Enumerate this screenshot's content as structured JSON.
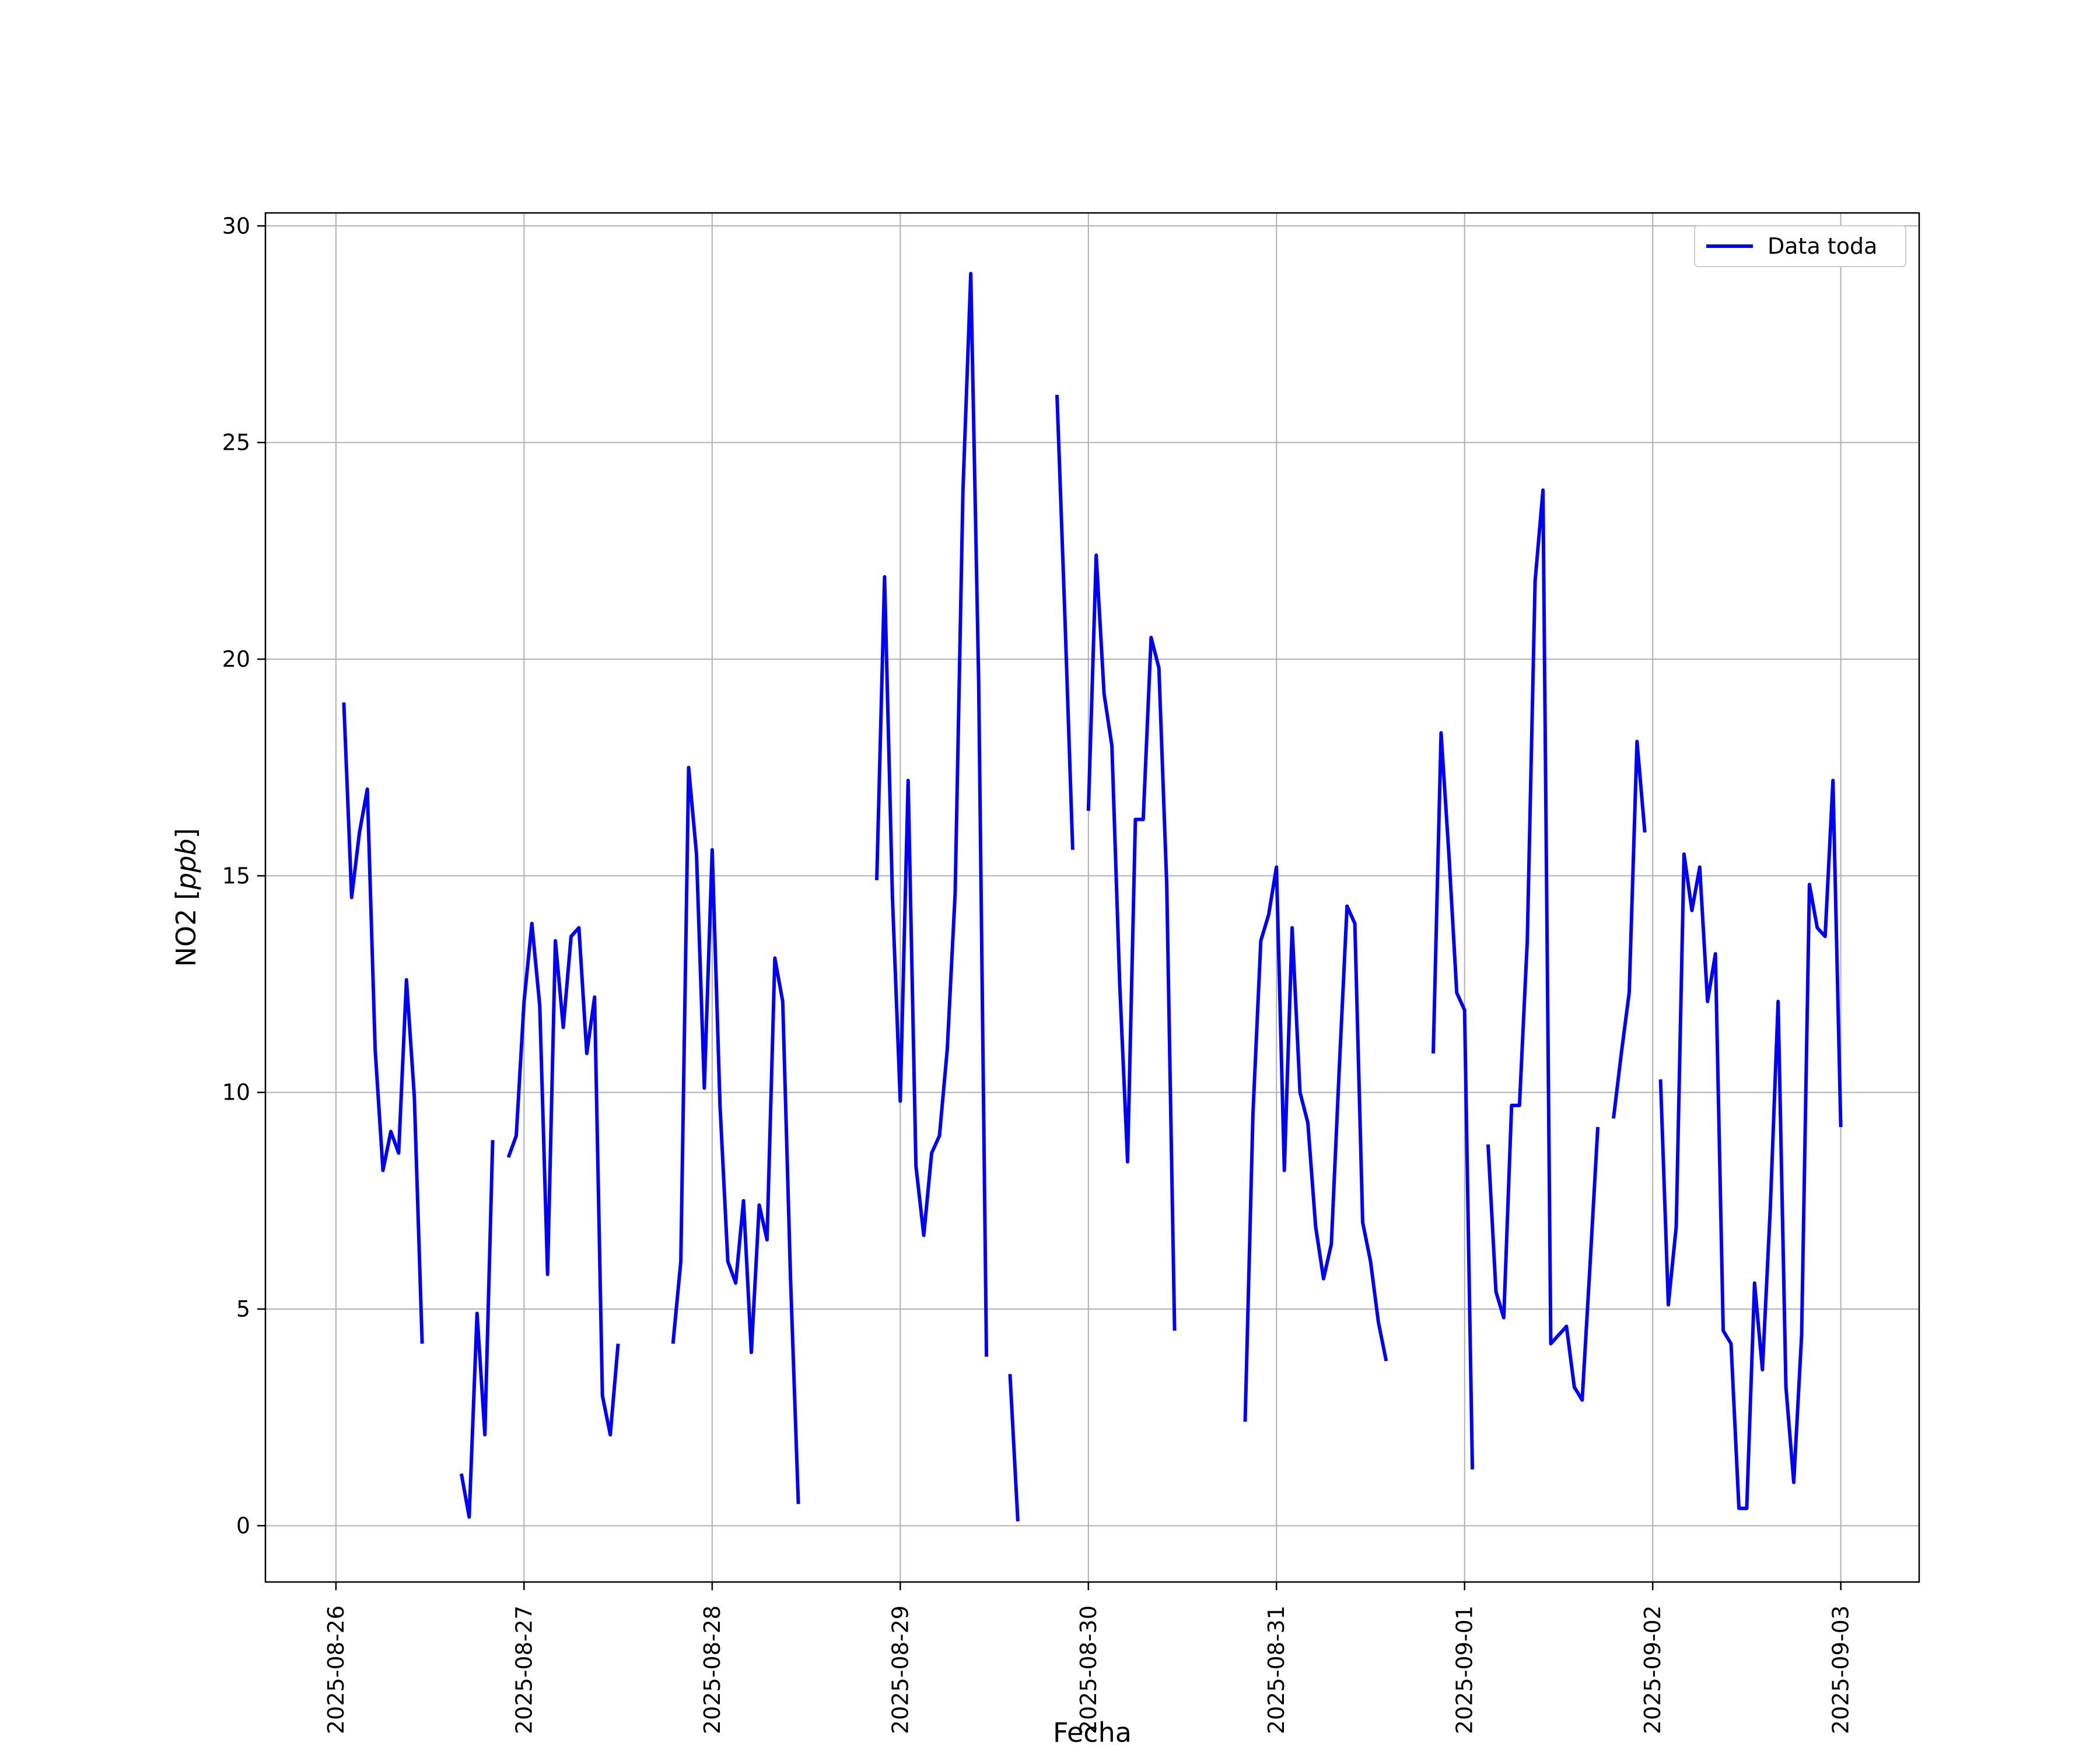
{
  "chart_data": {
    "type": "line",
    "xlabel": "Fecha",
    "ylabel_main": "NO2 [",
    "ylabel_unit": "ppb",
    "ylabel_end": "]",
    "ylim": [
      -1.3,
      30.3
    ],
    "xlim": [
      "2025-08-25T15:00",
      "2025-09-03T10:00"
    ],
    "grid": true,
    "legend_position": "top-right",
    "series_color": "#0000ff",
    "x_ticks": [
      {
        "value": "2025-08-26T00:00",
        "label": "2025-08-26"
      },
      {
        "value": "2025-08-27T00:00",
        "label": "2025-08-27"
      },
      {
        "value": "2025-08-28T00:00",
        "label": "2025-08-28"
      },
      {
        "value": "2025-08-29T00:00",
        "label": "2025-08-29"
      },
      {
        "value": "2025-08-30T00:00",
        "label": "2025-08-30"
      },
      {
        "value": "2025-08-31T00:00",
        "label": "2025-08-31"
      },
      {
        "value": "2025-09-01T00:00",
        "label": "2025-09-01"
      },
      {
        "value": "2025-09-02T00:00",
        "label": "2025-09-02"
      },
      {
        "value": "2025-09-03T00:00",
        "label": "2025-09-03"
      }
    ],
    "y_ticks": [
      {
        "value": 0,
        "label": "0"
      },
      {
        "value": 5,
        "label": "5"
      },
      {
        "value": 10,
        "label": "10"
      },
      {
        "value": 15,
        "label": "15"
      },
      {
        "value": 20,
        "label": "20"
      },
      {
        "value": 25,
        "label": "25"
      },
      {
        "value": 30,
        "label": "30"
      }
    ],
    "series": [
      {
        "name": "Data toda",
        "segments": [
          [
            [
              "2025-08-26T01:00",
              19.0
            ],
            [
              "2025-08-26T02:00",
              14.5
            ],
            [
              "2025-08-26T03:00",
              16.0
            ],
            [
              "2025-08-26T04:00",
              17.0
            ],
            [
              "2025-08-26T05:00",
              11.0
            ],
            [
              "2025-08-26T06:00",
              8.2
            ],
            [
              "2025-08-26T07:00",
              9.1
            ],
            [
              "2025-08-26T08:00",
              8.6
            ],
            [
              "2025-08-26T09:00",
              12.6
            ],
            [
              "2025-08-26T10:00",
              9.9
            ],
            [
              "2025-08-26T11:00",
              4.2
            ]
          ],
          [
            [
              "2025-08-26T16:00",
              1.2
            ],
            [
              "2025-08-26T17:00",
              0.2
            ],
            [
              "2025-08-26T18:00",
              4.9
            ],
            [
              "2025-08-26T19:00",
              2.1
            ],
            [
              "2025-08-26T20:00",
              8.9
            ]
          ],
          [
            [
              "2025-08-26T22:00",
              8.5
            ],
            [
              "2025-08-26T23:00",
              9.0
            ],
            [
              "2025-08-27T00:00",
              12.1
            ],
            [
              "2025-08-27T01:00",
              13.9
            ],
            [
              "2025-08-27T02:00",
              12.0
            ],
            [
              "2025-08-27T03:00",
              5.8
            ],
            [
              "2025-08-27T04:00",
              13.5
            ],
            [
              "2025-08-27T05:00",
              11.5
            ],
            [
              "2025-08-27T06:00",
              13.6
            ],
            [
              "2025-08-27T07:00",
              13.8
            ],
            [
              "2025-08-27T08:00",
              10.9
            ],
            [
              "2025-08-27T09:00",
              12.2
            ],
            [
              "2025-08-27T10:00",
              3.0
            ],
            [
              "2025-08-27T11:00",
              2.1
            ],
            [
              "2025-08-27T12:00",
              4.2
            ]
          ],
          [
            [
              "2025-08-27T19:00",
              4.2
            ],
            [
              "2025-08-27T20:00",
              6.1
            ],
            [
              "2025-08-27T21:00",
              17.5
            ],
            [
              "2025-08-27T22:00",
              15.5
            ],
            [
              "2025-08-27T23:00",
              10.1
            ],
            [
              "2025-08-28T00:00",
              15.6
            ],
            [
              "2025-08-28T01:00",
              9.7
            ],
            [
              "2025-08-28T02:00",
              6.1
            ],
            [
              "2025-08-28T03:00",
              5.6
            ],
            [
              "2025-08-28T04:00",
              7.5
            ],
            [
              "2025-08-28T05:00",
              4.0
            ],
            [
              "2025-08-28T06:00",
              7.4
            ],
            [
              "2025-08-28T07:00",
              6.6
            ],
            [
              "2025-08-28T08:00",
              13.1
            ],
            [
              "2025-08-28T09:00",
              12.1
            ],
            [
              "2025-08-28T10:00",
              5.7
            ],
            [
              "2025-08-28T11:00",
              0.5
            ]
          ],
          [
            [
              "2025-08-28T21:00",
              14.9
            ],
            [
              "2025-08-28T22:00",
              21.9
            ],
            [
              "2025-08-28T23:00",
              14.5
            ],
            [
              "2025-08-29T00:00",
              9.8
            ],
            [
              "2025-08-29T01:00",
              17.2
            ],
            [
              "2025-08-29T02:00",
              8.3
            ],
            [
              "2025-08-29T03:00",
              6.7
            ],
            [
              "2025-08-29T04:00",
              8.6
            ],
            [
              "2025-08-29T05:00",
              9.0
            ],
            [
              "2025-08-29T06:00",
              11.0
            ],
            [
              "2025-08-29T07:00",
              14.6
            ],
            [
              "2025-08-29T08:00",
              23.9
            ],
            [
              "2025-08-29T09:00",
              28.9
            ],
            [
              "2025-08-29T10:00",
              19.5
            ],
            [
              "2025-08-29T11:00",
              3.9
            ]
          ],
          [
            [
              "2025-08-29T14:00",
              3.5
            ],
            [
              "2025-08-29T15:00",
              0.1
            ]
          ],
          [
            [
              "2025-08-29T20:00",
              26.1
            ],
            [
              "2025-08-29T21:00",
              21.0
            ],
            [
              "2025-08-29T22:00",
              15.6
            ]
          ],
          [
            [
              "2025-08-30T00:00",
              16.5
            ],
            [
              "2025-08-30T01:00",
              22.4
            ],
            [
              "2025-08-30T02:00",
              19.2
            ],
            [
              "2025-08-30T03:00",
              18.0
            ],
            [
              "2025-08-30T04:00",
              12.5
            ],
            [
              "2025-08-30T05:00",
              8.4
            ],
            [
              "2025-08-30T06:00",
              16.3
            ],
            [
              "2025-08-30T07:00",
              16.3
            ],
            [
              "2025-08-30T08:00",
              20.5
            ],
            [
              "2025-08-30T09:00",
              19.8
            ],
            [
              "2025-08-30T10:00",
              14.8
            ],
            [
              "2025-08-30T11:00",
              4.5
            ]
          ],
          [
            [
              "2025-08-30T20:00",
              2.4
            ],
            [
              "2025-08-30T21:00",
              9.5
            ],
            [
              "2025-08-30T22:00",
              13.5
            ],
            [
              "2025-08-30T23:00",
              14.1
            ],
            [
              "2025-08-31T00:00",
              15.2
            ],
            [
              "2025-08-31T01:00",
              8.2
            ],
            [
              "2025-08-31T02:00",
              13.8
            ],
            [
              "2025-08-31T03:00",
              10.0
            ],
            [
              "2025-08-31T04:00",
              9.3
            ],
            [
              "2025-08-31T05:00",
              6.9
            ],
            [
              "2025-08-31T06:00",
              5.7
            ],
            [
              "2025-08-31T07:00",
              6.5
            ],
            [
              "2025-08-31T08:00",
              10.5
            ],
            [
              "2025-08-31T09:00",
              14.3
            ],
            [
              "2025-08-31T10:00",
              13.9
            ],
            [
              "2025-08-31T11:00",
              7.0
            ],
            [
              "2025-08-31T12:00",
              6.1
            ],
            [
              "2025-08-31T13:00",
              4.7
            ],
            [
              "2025-08-31T14:00",
              3.8
            ]
          ],
          [
            [
              "2025-08-31T20:00",
              10.9
            ],
            [
              "2025-08-31T21:00",
              18.3
            ],
            [
              "2025-08-31T22:00",
              15.5
            ],
            [
              "2025-08-31T23:00",
              12.3
            ],
            [
              "2025-09-01T00:00",
              11.9
            ],
            [
              "2025-09-01T01:00",
              1.3
            ]
          ],
          [
            [
              "2025-09-01T03:00",
              8.8
            ],
            [
              "2025-09-01T04:00",
              5.4
            ],
            [
              "2025-09-01T05:00",
              4.8
            ],
            [
              "2025-09-01T06:00",
              9.7
            ],
            [
              "2025-09-01T07:00",
              9.7
            ],
            [
              "2025-09-01T08:00",
              13.5
            ],
            [
              "2025-09-01T09:00",
              21.8
            ],
            [
              "2025-09-01T10:00",
              23.9
            ],
            [
              "2025-09-01T11:00",
              4.2
            ],
            [
              "2025-09-01T12:00",
              4.4
            ],
            [
              "2025-09-01T13:00",
              4.6
            ],
            [
              "2025-09-01T14:00",
              3.2
            ],
            [
              "2025-09-01T15:00",
              2.9
            ],
            [
              "2025-09-01T16:00",
              6.0
            ],
            [
              "2025-09-01T17:00",
              9.2
            ]
          ],
          [
            [
              "2025-09-01T19:00",
              9.4
            ],
            [
              "2025-09-01T20:00",
              10.9
            ],
            [
              "2025-09-01T21:00",
              12.3
            ],
            [
              "2025-09-01T22:00",
              18.1
            ],
            [
              "2025-09-01T23:00",
              16.0
            ]
          ],
          [
            [
              "2025-09-02T01:00",
              10.3
            ],
            [
              "2025-09-02T02:00",
              5.1
            ],
            [
              "2025-09-02T03:00",
              6.9
            ],
            [
              "2025-09-02T04:00",
              15.5
            ],
            [
              "2025-09-02T05:00",
              14.2
            ],
            [
              "2025-09-02T06:00",
              15.2
            ],
            [
              "2025-09-02T07:00",
              12.1
            ],
            [
              "2025-09-02T08:00",
              13.2
            ],
            [
              "2025-09-02T09:00",
              4.5
            ],
            [
              "2025-09-02T10:00",
              4.2
            ],
            [
              "2025-09-02T11:00",
              0.4
            ],
            [
              "2025-09-02T12:00",
              0.4
            ],
            [
              "2025-09-02T13:00",
              5.6
            ],
            [
              "2025-09-02T14:00",
              3.6
            ],
            [
              "2025-09-02T15:00",
              7.3
            ],
            [
              "2025-09-02T16:00",
              12.1
            ],
            [
              "2025-09-02T17:00",
              3.2
            ],
            [
              "2025-09-02T18:00",
              1.0
            ],
            [
              "2025-09-02T19:00",
              4.4
            ],
            [
              "2025-09-02T20:00",
              14.8
            ],
            [
              "2025-09-02T21:00",
              13.8
            ],
            [
              "2025-09-02T22:00",
              13.6
            ],
            [
              "2025-09-02T23:00",
              17.2
            ],
            [
              "2025-09-03T00:00",
              9.2
            ]
          ]
        ]
      }
    ]
  }
}
